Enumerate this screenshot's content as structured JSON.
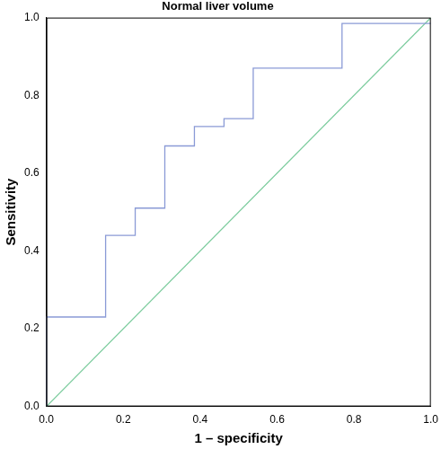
{
  "chart_data": {
    "type": "line",
    "title": "Normal liver volume",
    "x_label": "1 – specificity",
    "y_label": "Sensitivity",
    "series": [
      {
        "x": [
          0,
          0,
          0.154,
          0.154,
          0.231,
          0.231,
          0.308,
          0.308,
          0.385,
          0.385,
          0.462,
          0.462,
          0.538,
          0.538,
          0.769,
          0.769,
          1.0
        ],
        "values": [
          0,
          0.23,
          0.23,
          0.44,
          0.44,
          0.51,
          0.51,
          0.67,
          0.67,
          0.72,
          0.72,
          0.74,
          0.74,
          0.87,
          0.87,
          0.985,
          0.985
        ],
        "color": "#8a9ad6",
        "line_style": "solid"
      },
      {
        "x": [
          0,
          1
        ],
        "values": [
          0,
          1
        ],
        "color": "#7acb9c",
        "line_style": "solid"
      }
    ],
    "xlim": [
      0,
      1
    ],
    "ylim": [
      0,
      1
    ],
    "xticks": [
      {
        "value": 0,
        "label": "0.0"
      },
      0.2,
      0.4,
      0.6,
      0.8,
      {
        "value": 1,
        "label": "1.0"
      }
    ],
    "yticks": [
      {
        "value": 0,
        "label": "0.0"
      },
      0.2,
      0.4,
      0.6,
      0.8,
      {
        "value": 1,
        "label": "1.0"
      }
    ],
    "grid": false
  }
}
